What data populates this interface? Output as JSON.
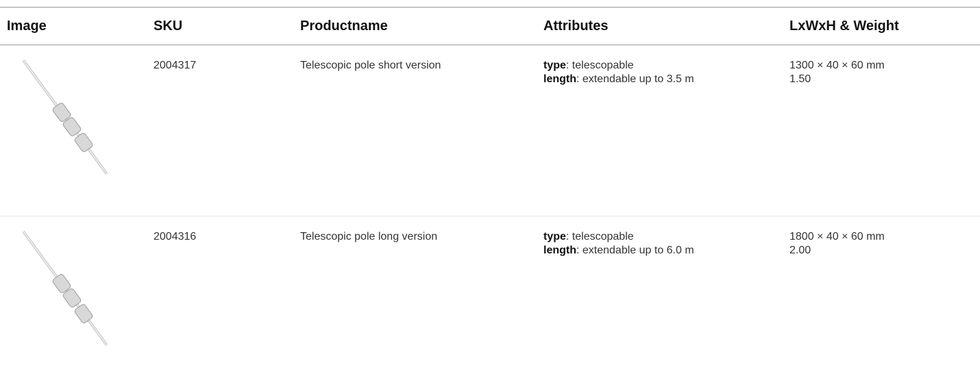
{
  "table": {
    "headers": [
      "Image",
      "SKU",
      "Productname",
      "Attributes",
      "LxWxH & Weight"
    ],
    "rows": [
      {
        "sku": "2004317",
        "name": "Telescopic pole short version",
        "attributes": [
          {
            "key": "type",
            "value": ": telescopable"
          },
          {
            "key": "length",
            "value": ": extendable up to 3.5 m"
          }
        ],
        "dimensions": "1300 × 40 × 60 mm",
        "weight": "1.50"
      },
      {
        "sku": "2004316",
        "name": "Telescopic pole long version",
        "attributes": [
          {
            "key": "type",
            "value": ": telescopable"
          },
          {
            "key": "length",
            "value": ": extendable up to 6.0 m"
          }
        ],
        "dimensions": "1800 × 40 × 60 mm",
        "weight": "2.00"
      }
    ]
  }
}
